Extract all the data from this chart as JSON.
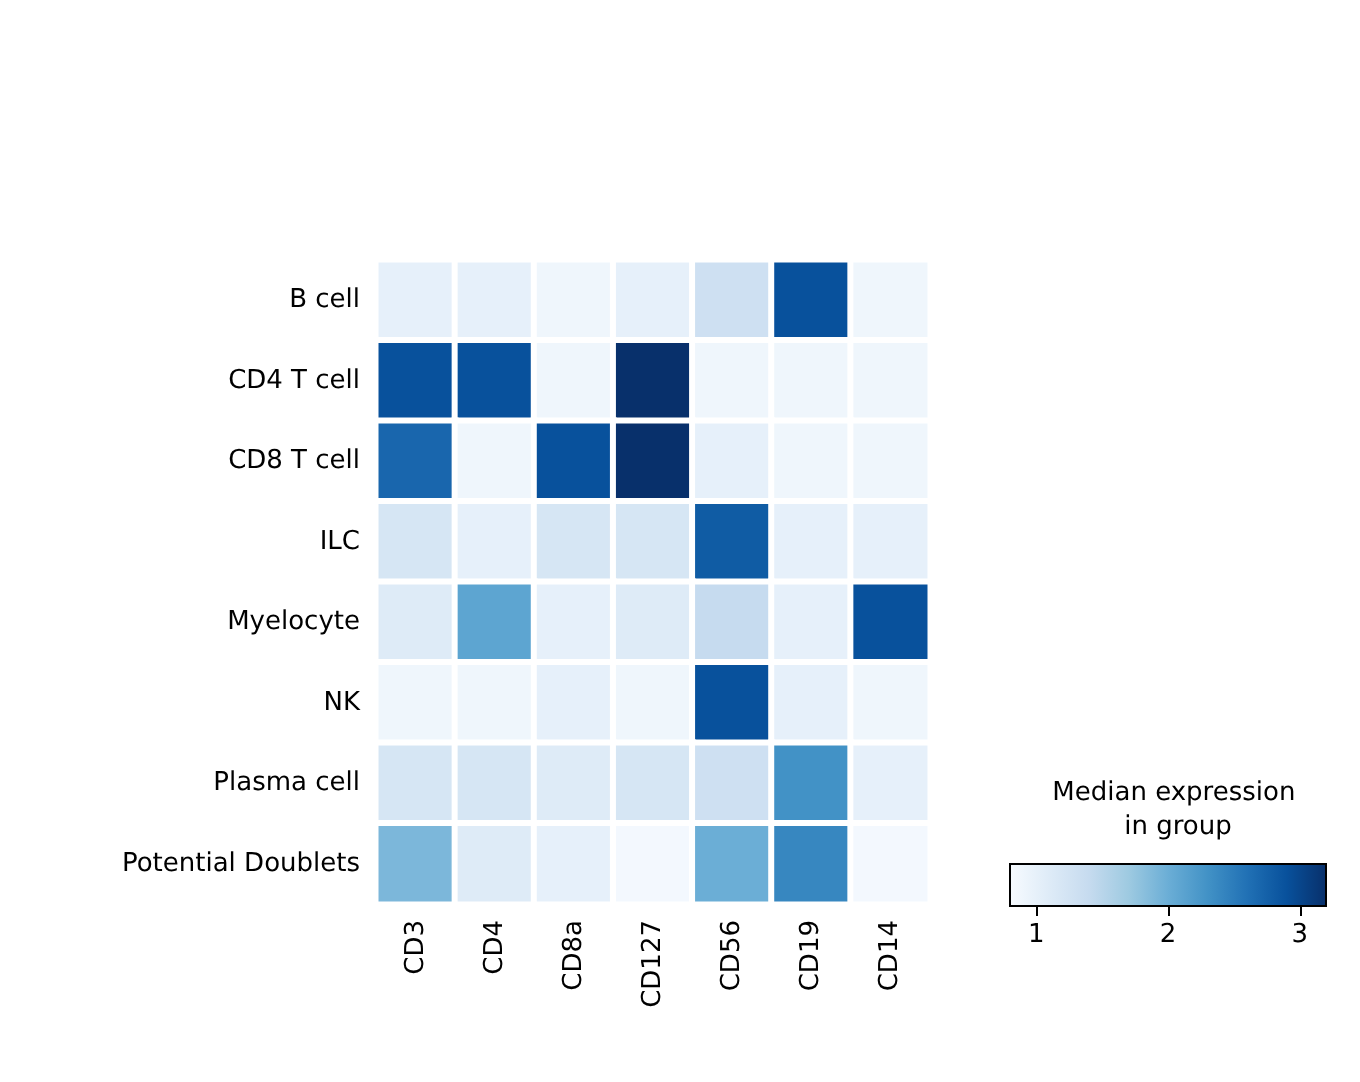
{
  "chart_data": {
    "type": "heatmap",
    "categories": [
      "CD3",
      "CD4",
      "CD8a",
      "CD127",
      "CD56",
      "CD19",
      "CD14"
    ],
    "y_categories": [
      "B cell",
      "CD4 T cell",
      "CD8 T cell",
      "ILC",
      "Myelocyte",
      "NK",
      "Plasma cell",
      "Potential Doublets"
    ],
    "cells": [
      [
        1.0,
        1.0,
        0.9,
        1.0,
        1.3,
        2.9,
        0.9
      ],
      [
        2.9,
        2.9,
        0.9,
        3.2,
        0.9,
        0.9,
        0.9
      ],
      [
        2.7,
        0.9,
        2.9,
        3.2,
        1.0,
        0.9,
        0.9
      ],
      [
        1.2,
        1.0,
        1.2,
        1.2,
        2.8,
        1.0,
        1.0
      ],
      [
        1.1,
        2.1,
        1.0,
        1.1,
        1.4,
        1.0,
        2.9
      ],
      [
        0.9,
        0.9,
        1.0,
        0.9,
        2.9,
        1.0,
        0.9
      ],
      [
        1.2,
        1.2,
        1.1,
        1.2,
        1.3,
        2.3,
        1.0
      ],
      [
        1.9,
        1.1,
        1.0,
        0.85,
        2.0,
        2.4,
        0.85
      ]
    ],
    "clabel": "Median expression in group",
    "clim": [
      0.8,
      3.2
    ],
    "cticks": [
      1,
      2,
      3
    ]
  }
}
